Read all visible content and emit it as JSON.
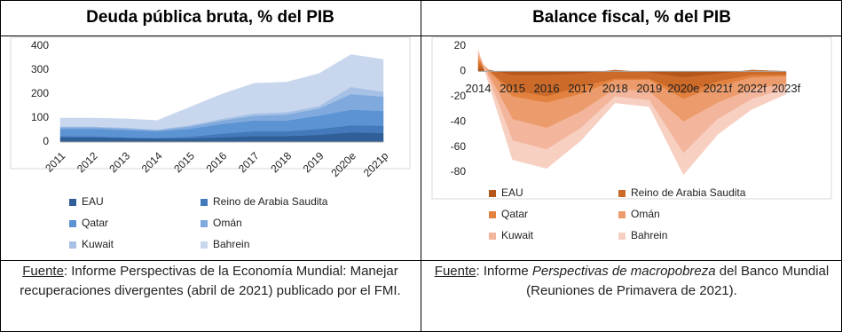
{
  "chart_data": [
    {
      "type": "area",
      "stacked": true,
      "title": "Deuda pública bruta, % del PIB",
      "categories": [
        "2011",
        "2012",
        "2013",
        "2014",
        "2015",
        "2016",
        "2017",
        "2018",
        "2019",
        "2020e",
        "2021p"
      ],
      "ylim": [
        0,
        400
      ],
      "yticks": [
        0,
        100,
        200,
        300,
        400
      ],
      "series": [
        {
          "name": "EAU",
          "color": "#2f5f96",
          "values": [
            20,
            20,
            17,
            15,
            15,
            20,
            25,
            25,
            30,
            40,
            38
          ]
        },
        {
          "name": "Reino de Arabia Saudita",
          "color": "#4479bb",
          "values": [
            5,
            4,
            3,
            2,
            7,
            15,
            20,
            20,
            25,
            30,
            30
          ]
        },
        {
          "name": "Qatar",
          "color": "#5b93d3",
          "values": [
            30,
            31,
            30,
            28,
            33,
            40,
            45,
            45,
            55,
            65,
            62
          ]
        },
        {
          "name": "Omán",
          "color": "#80aadd",
          "values": [
            7,
            7,
            7,
            5,
            10,
            15,
            20,
            25,
            30,
            65,
            60
          ]
        },
        {
          "name": "Kuwait",
          "color": "#a6c1e5",
          "values": [
            3,
            3,
            3,
            2,
            5,
            7,
            10,
            10,
            10,
            30,
            20
          ]
        },
        {
          "name": "Bahrein",
          "color": "#c9d7ee",
          "values": [
            35,
            35,
            37,
            38,
            75,
            103,
            125,
            125,
            135,
            135,
            135
          ]
        }
      ]
    },
    {
      "type": "area",
      "stacked": true,
      "title": "Balance fiscal, % del PIB",
      "categories": [
        "2014",
        "2015",
        "2016",
        "2017",
        "2018",
        "2019",
        "2020e",
        "2021f",
        "2022f",
        "2023f"
      ],
      "ylim": [
        -80,
        20
      ],
      "yticks": [
        20,
        0,
        -20,
        -40,
        -60,
        -80
      ],
      "series": [
        {
          "name": "EAU",
          "color": "#b5571a",
          "values": [
            3,
            -3,
            -3,
            -2,
            1,
            -1,
            -5,
            -2,
            1,
            0
          ]
        },
        {
          "name": "Reino de Arabia Saudita",
          "color": "#cc6a2a",
          "values": [
            4,
            -12,
            -17,
            -10,
            -7,
            -5,
            -13,
            -6,
            -4,
            -3
          ]
        },
        {
          "name": "Qatar",
          "color": "#e3823f",
          "values": [
            3,
            -5,
            -5,
            -6,
            -1,
            -1,
            -4,
            -4,
            -2,
            -1
          ]
        },
        {
          "name": "Omán",
          "color": "#ec9c6c",
          "values": [
            3,
            -18,
            -20,
            -14,
            -7,
            -9,
            -18,
            -13,
            -9,
            -6
          ]
        },
        {
          "name": "Kuwait",
          "color": "#f3b69d",
          "values": [
            3,
            -17,
            -17,
            -13,
            -6,
            -7,
            -25,
            -13,
            -8,
            -4
          ]
        },
        {
          "name": "Bahrein",
          "color": "#f7d0c2",
          "values": [
            1,
            -15,
            -15,
            -10,
            -5,
            -5,
            -17,
            -12,
            -8,
            -4
          ]
        }
      ]
    }
  ],
  "sources": [
    {
      "label": "Fuente",
      "text": ": Informe Perspectivas de la Economía Mundial: Manejar recuperaciones divergentes (abril de 2021) publicado por el FMI."
    },
    {
      "label": "Fuente",
      "text": ": Informe ",
      "italic": "Perspectivas de macropobreza",
      "rest": " del Banco Mundial (Reuniones de Primavera de 2021)."
    }
  ]
}
